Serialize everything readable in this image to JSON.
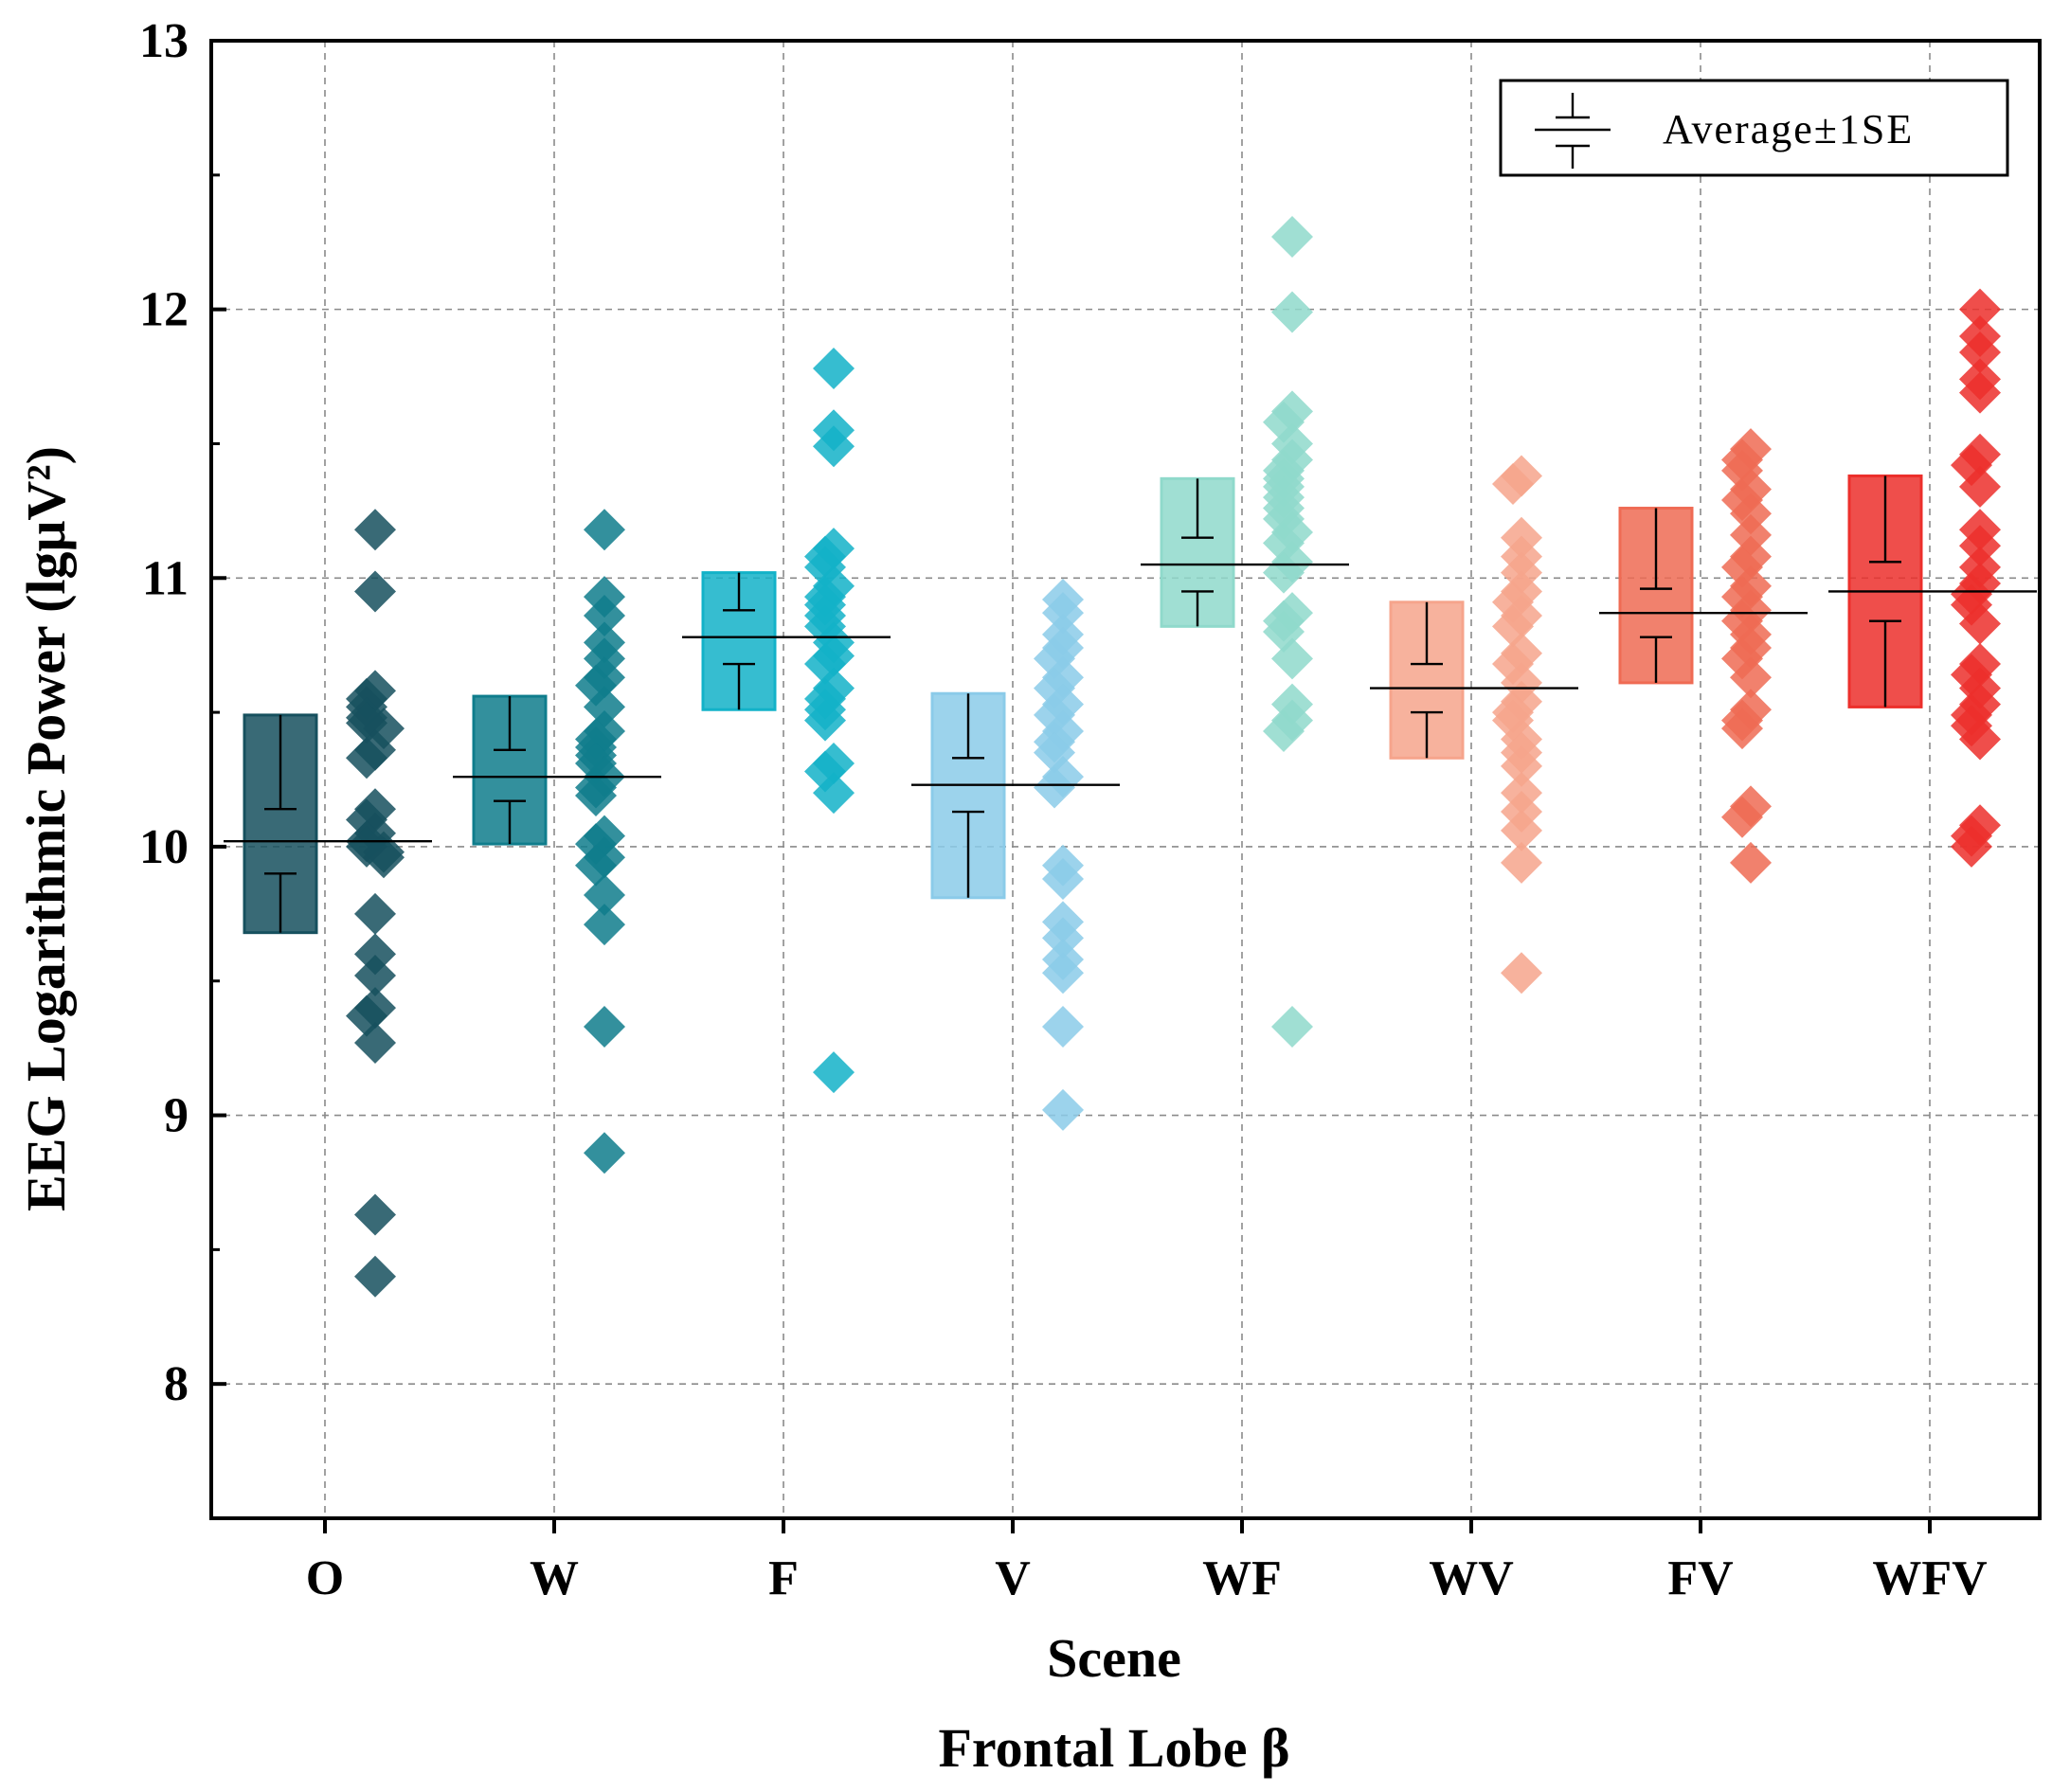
{
  "chart_data": {
    "type": "scatter",
    "title": "",
    "caption": "Frontal Lobe β",
    "xlabel": "Scene",
    "ylabel": "EEG Logarithmic Power (lgμV²)",
    "ylim": [
      7.5,
      13
    ],
    "yticks": [
      "8",
      "9",
      "10",
      "11",
      "12",
      "13"
    ],
    "grid": true,
    "legend": {
      "label": "Average±1SE",
      "position": "top-right"
    },
    "categories": [
      "O",
      "W",
      "F",
      "V",
      "WF",
      "WV",
      "FV",
      "WFV"
    ],
    "colors": [
      "#16505e",
      "#0f7d8c",
      "#13b2c8",
      "#8bcbe9",
      "#8fd9cb",
      "#f6a48c",
      "#ef6b54",
      "#ec2f2b"
    ],
    "series": [
      {
        "name": "O",
        "mean": 10.02,
        "box": [
          9.68,
          10.49
        ],
        "se": [
          9.9,
          10.14
        ],
        "points": [
          11.18,
          10.95,
          10.58,
          10.55,
          10.52,
          10.48,
          10.46,
          10.44,
          10.36,
          10.33,
          10.14,
          10.1,
          10.05,
          10.02,
          10.0,
          9.98,
          9.96,
          9.75,
          9.6,
          9.52,
          9.4,
          9.37,
          9.27,
          8.63,
          8.4
        ]
      },
      {
        "name": "W",
        "mean": 10.26,
        "box": [
          10.01,
          10.56
        ],
        "se": [
          10.17,
          10.36
        ],
        "points": [
          11.18,
          10.93,
          10.86,
          10.76,
          10.7,
          10.63,
          10.6,
          10.52,
          10.43,
          10.4,
          10.37,
          10.34,
          10.31,
          10.26,
          10.22,
          10.19,
          10.04,
          10.01,
          9.96,
          9.93,
          9.82,
          9.71,
          9.33,
          8.86
        ]
      },
      {
        "name": "F",
        "mean": 10.78,
        "box": [
          10.51,
          11.02
        ],
        "se": [
          10.68,
          10.88
        ],
        "points": [
          11.78,
          11.55,
          11.49,
          11.11,
          11.08,
          11.04,
          10.97,
          10.93,
          10.9,
          10.86,
          10.82,
          10.76,
          10.71,
          10.68,
          10.59,
          10.55,
          10.51,
          10.47,
          10.31,
          10.28,
          10.2,
          9.16
        ]
      },
      {
        "name": "V",
        "mean": 10.23,
        "box": [
          9.81,
          10.57
        ],
        "se": [
          10.13,
          10.33
        ],
        "points": [
          10.92,
          10.87,
          10.79,
          10.74,
          10.7,
          10.63,
          10.59,
          10.53,
          10.49,
          10.43,
          10.39,
          10.35,
          10.26,
          10.22,
          9.93,
          9.88,
          9.72,
          9.66,
          9.58,
          9.53,
          9.33,
          9.02
        ]
      },
      {
        "name": "WF",
        "mean": 11.05,
        "box": [
          10.82,
          11.37
        ],
        "se": [
          10.95,
          11.15
        ],
        "points": [
          12.27,
          11.99,
          11.62,
          11.58,
          11.5,
          11.44,
          11.4,
          11.37,
          11.34,
          11.3,
          11.26,
          11.22,
          11.17,
          11.13,
          11.06,
          11.02,
          10.87,
          10.84,
          10.8,
          10.7,
          10.53,
          10.47,
          10.43,
          9.33
        ]
      },
      {
        "name": "WV",
        "mean": 10.59,
        "box": [
          10.33,
          10.91
        ],
        "se": [
          10.5,
          10.68
        ],
        "points": [
          11.38,
          11.35,
          11.15,
          11.08,
          11.02,
          10.95,
          10.91,
          10.86,
          10.82,
          10.72,
          10.68,
          10.61,
          10.54,
          10.5,
          10.47,
          10.4,
          10.35,
          10.3,
          10.2,
          10.13,
          10.06,
          9.94,
          9.53
        ]
      },
      {
        "name": "FV",
        "mean": 10.87,
        "box": [
          10.61,
          11.26
        ],
        "se": [
          10.78,
          10.96
        ],
        "points": [
          11.48,
          11.44,
          11.4,
          11.33,
          11.29,
          11.24,
          11.16,
          11.08,
          11.04,
          10.97,
          10.93,
          10.88,
          10.84,
          10.79,
          10.74,
          10.7,
          10.63,
          10.51,
          10.47,
          10.44,
          10.15,
          10.11,
          9.94
        ]
      },
      {
        "name": "WFV",
        "mean": 10.95,
        "box": [
          10.52,
          11.38
        ],
        "se": [
          10.84,
          11.06
        ],
        "points": [
          12.0,
          11.9,
          11.84,
          11.74,
          11.69,
          11.46,
          11.42,
          11.34,
          11.18,
          11.12,
          11.04,
          10.98,
          10.94,
          10.9,
          10.83,
          10.68,
          10.64,
          10.59,
          10.53,
          10.49,
          10.45,
          10.4,
          10.08,
          10.04,
          10.0
        ]
      }
    ]
  }
}
